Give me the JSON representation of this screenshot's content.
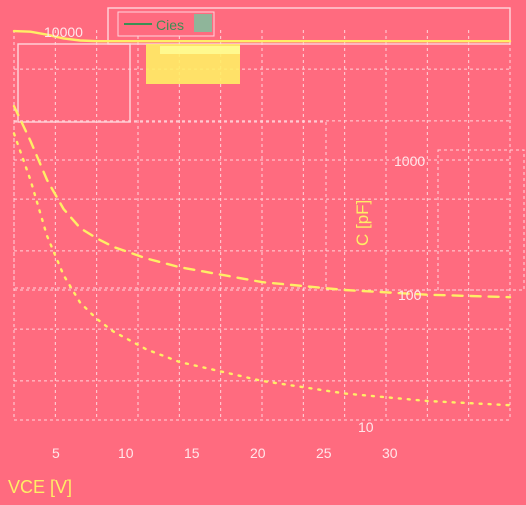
{
  "chart_data": {
    "type": "line",
    "x": [
      0,
      1,
      2,
      3,
      4,
      5,
      6,
      8,
      10,
      15,
      20,
      25,
      30
    ],
    "series": [
      {
        "name": "Cies",
        "values": [
          9800,
          9700,
          9200,
          8600,
          8300,
          8200,
          8200,
          8200,
          8200,
          8200,
          8200,
          8200,
          8200
        ],
        "color": "#ffee66",
        "style": "solid"
      },
      {
        "values": [
          2600,
          1400,
          700,
          420,
          300,
          250,
          215,
          175,
          150,
          115,
          100,
          92,
          88
        ],
        "color": "#ffee66",
        "style": "dashed"
      },
      {
        "values": [
          1600,
          700,
          260,
          130,
          80,
          60,
          48,
          35,
          28,
          20,
          16,
          14,
          13
        ],
        "color": "#ffee66",
        "style": "dotted"
      }
    ],
    "xlim": [
      0,
      30
    ],
    "ylim": [
      10,
      10000
    ],
    "y_scale": "log",
    "x_ticks": [
      "5",
      "10",
      "15",
      "20",
      "25",
      "30"
    ],
    "y_ticks": [
      "10000",
      "1000",
      "100",
      "10"
    ],
    "xlabel": "VCE [V]",
    "ylabel": "C [pF]",
    "legend": [
      "Cies"
    ],
    "legend_position": "top",
    "grid": true
  },
  "colors": {
    "background": "#ff6b7f",
    "curve": "#ffee66",
    "grid": "#ffd6dc",
    "legend_box": "#ffee66"
  }
}
